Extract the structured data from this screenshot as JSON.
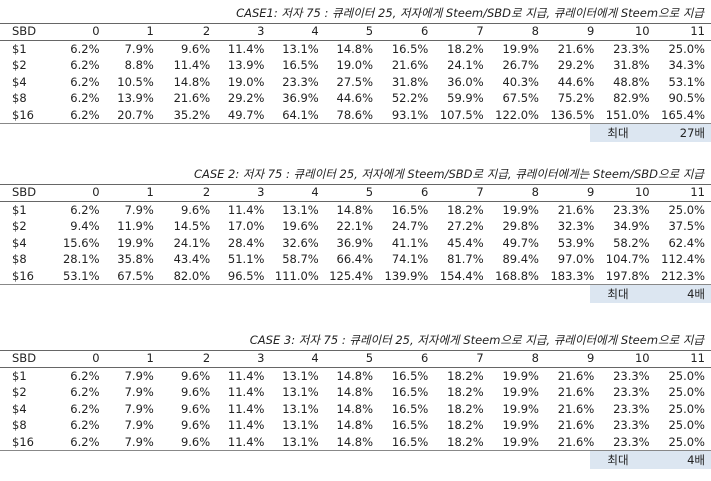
{
  "columns": [
    "0",
    "1",
    "2",
    "3",
    "4",
    "5",
    "6",
    "7",
    "8",
    "9",
    "10",
    "11"
  ],
  "cases": [
    {
      "title": "CASE1: 저자 75 : 큐레이터 25, 저자에게 Steem/SBD로 지급, 큐레이터에게 Steem으로 지급",
      "header_label": "SBD",
      "rows": [
        {
          "label": "$1",
          "values": [
            "6.2%",
            "7.9%",
            "9.6%",
            "11.4%",
            "13.1%",
            "14.8%",
            "16.5%",
            "18.2%",
            "19.9%",
            "21.6%",
            "23.3%",
            "25.0%"
          ]
        },
        {
          "label": "$2",
          "values": [
            "6.2%",
            "8.8%",
            "11.4%",
            "13.9%",
            "16.5%",
            "19.0%",
            "21.6%",
            "24.1%",
            "26.7%",
            "29.2%",
            "31.8%",
            "34.3%"
          ]
        },
        {
          "label": "$4",
          "values": [
            "6.2%",
            "10.5%",
            "14.8%",
            "19.0%",
            "23.3%",
            "27.5%",
            "31.8%",
            "36.0%",
            "40.3%",
            "44.6%",
            "48.8%",
            "53.1%"
          ]
        },
        {
          "label": "$8",
          "values": [
            "6.2%",
            "13.9%",
            "21.6%",
            "29.2%",
            "36.9%",
            "44.6%",
            "52.2%",
            "59.9%",
            "67.5%",
            "75.2%",
            "82.9%",
            "90.5%"
          ]
        },
        {
          "label": "$16",
          "values": [
            "6.2%",
            "20.7%",
            "35.2%",
            "49.7%",
            "64.1%",
            "78.6%",
            "93.1%",
            "107.5%",
            "122.0%",
            "136.5%",
            "151.0%",
            "165.4%"
          ]
        }
      ],
      "summary_key": "최대",
      "summary_value": "27배"
    },
    {
      "title": "CASE 2: 저자 75 : 큐레이터 25, 저자에게 Steem/SBD로 지급, 큐레이터에게는 Steem/SBD으로 지급",
      "header_label": "SBD",
      "rows": [
        {
          "label": "$1",
          "values": [
            "6.2%",
            "7.9%",
            "9.6%",
            "11.4%",
            "13.1%",
            "14.8%",
            "16.5%",
            "18.2%",
            "19.9%",
            "21.6%",
            "23.3%",
            "25.0%"
          ]
        },
        {
          "label": "$2",
          "values": [
            "9.4%",
            "11.9%",
            "14.5%",
            "17.0%",
            "19.6%",
            "22.1%",
            "24.7%",
            "27.2%",
            "29.8%",
            "32.3%",
            "34.9%",
            "37.5%"
          ]
        },
        {
          "label": "$4",
          "values": [
            "15.6%",
            "19.9%",
            "24.1%",
            "28.4%",
            "32.6%",
            "36.9%",
            "41.1%",
            "45.4%",
            "49.7%",
            "53.9%",
            "58.2%",
            "62.4%"
          ]
        },
        {
          "label": "$8",
          "values": [
            "28.1%",
            "35.8%",
            "43.4%",
            "51.1%",
            "58.7%",
            "66.4%",
            "74.1%",
            "81.7%",
            "89.4%",
            "97.0%",
            "104.7%",
            "112.4%"
          ]
        },
        {
          "label": "$16",
          "values": [
            "53.1%",
            "67.5%",
            "82.0%",
            "96.5%",
            "111.0%",
            "125.4%",
            "139.9%",
            "154.4%",
            "168.8%",
            "183.3%",
            "197.8%",
            "212.3%"
          ]
        }
      ],
      "summary_key": "최대",
      "summary_value": "4배"
    },
    {
      "title": "CASE 3: 저자 75 : 큐레이터 25, 저자에게 Steem으로 지급, 큐레이터에게 Steem으로 지급",
      "header_label": "SBD",
      "rows": [
        {
          "label": "$1",
          "values": [
            "6.2%",
            "7.9%",
            "9.6%",
            "11.4%",
            "13.1%",
            "14.8%",
            "16.5%",
            "18.2%",
            "19.9%",
            "21.6%",
            "23.3%",
            "25.0%"
          ]
        },
        {
          "label": "$2",
          "values": [
            "6.2%",
            "7.9%",
            "9.6%",
            "11.4%",
            "13.1%",
            "14.8%",
            "16.5%",
            "18.2%",
            "19.9%",
            "21.6%",
            "23.3%",
            "25.0%"
          ]
        },
        {
          "label": "$4",
          "values": [
            "6.2%",
            "7.9%",
            "9.6%",
            "11.4%",
            "13.1%",
            "14.8%",
            "16.5%",
            "18.2%",
            "19.9%",
            "21.6%",
            "23.3%",
            "25.0%"
          ]
        },
        {
          "label": "$8",
          "values": [
            "6.2%",
            "7.9%",
            "9.6%",
            "11.4%",
            "13.1%",
            "14.8%",
            "16.5%",
            "18.2%",
            "19.9%",
            "21.6%",
            "23.3%",
            "25.0%"
          ]
        },
        {
          "label": "$16",
          "values": [
            "6.2%",
            "7.9%",
            "9.6%",
            "11.4%",
            "13.1%",
            "14.8%",
            "16.5%",
            "18.2%",
            "19.9%",
            "21.6%",
            "23.3%",
            "25.0%"
          ]
        }
      ],
      "summary_key": "최대",
      "summary_value": "4배"
    }
  ]
}
